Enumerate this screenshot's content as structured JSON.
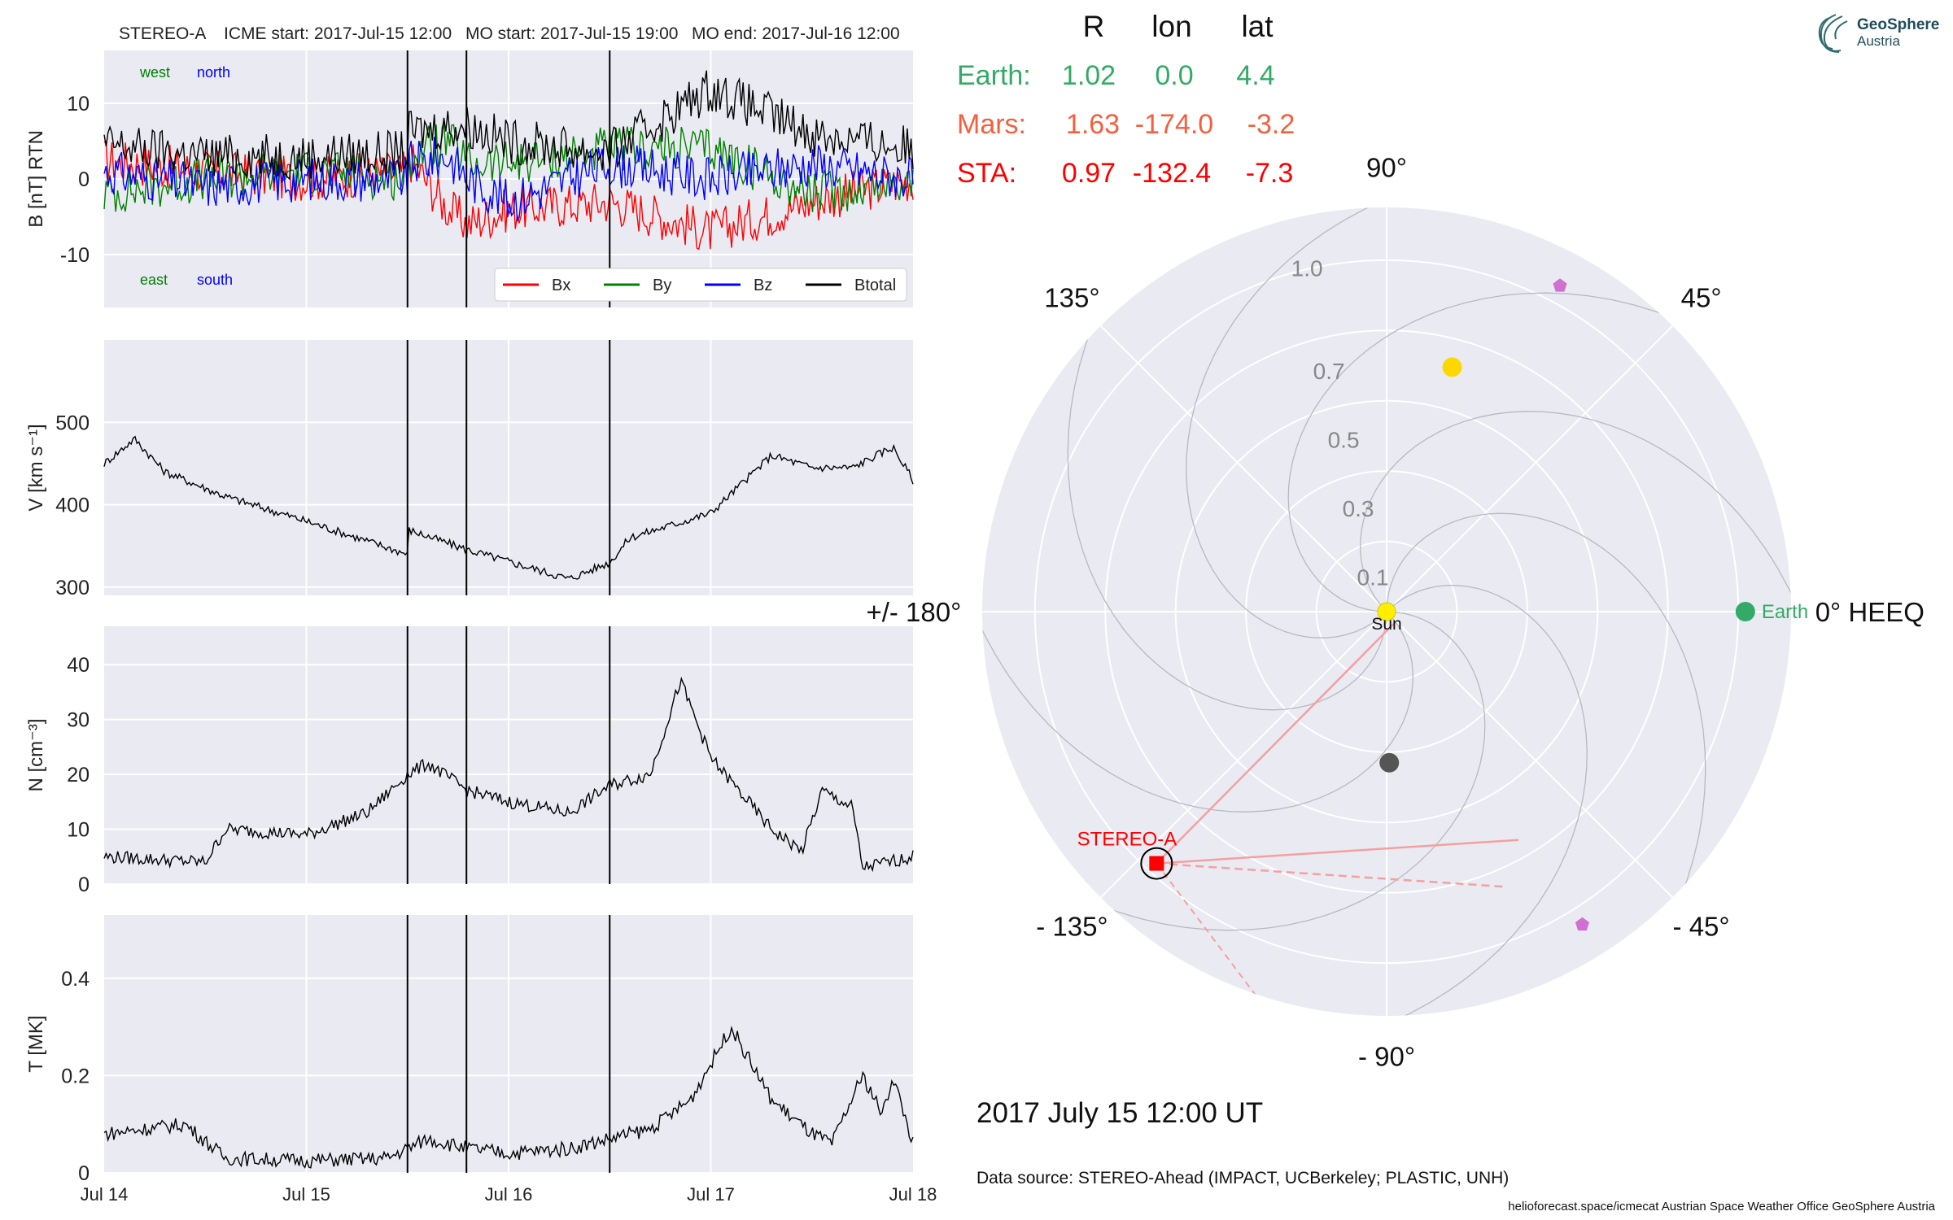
{
  "header": {
    "spacecraft": "STEREO-A",
    "icme_start": "ICME start: 2017-Jul-15 12:00",
    "mo_start": "MO start: 2017-Jul-15 19:00",
    "mo_end": "MO end: 2017-Jul-16 12:00"
  },
  "logo": {
    "line1": "GeoSphere",
    "line2": "Austria"
  },
  "position_table": {
    "headers": [
      "R",
      "lon",
      "lat"
    ],
    "rows": [
      {
        "name": "Earth:",
        "r": "1.02",
        "lon": "0.0",
        "lat": "4.4",
        "color": "#33aa66"
      },
      {
        "name": "Mars:",
        "r": "1.63",
        "lon": "-174.0",
        "lat": "-3.2",
        "color": "#f4603e"
      },
      {
        "name": "STA:",
        "r": "0.97",
        "lon": "-132.4",
        "lat": "-7.3",
        "color": "#ff0000"
      }
    ]
  },
  "polar": {
    "angle_labels": [
      "0° HEEQ",
      "45°",
      "90°",
      "135°",
      "+/- 180°",
      "- 135°",
      "- 90°",
      "- 45°"
    ],
    "radial_labels": [
      "0.1",
      "0.3",
      "0.5",
      "0.7",
      "1.0"
    ],
    "labels": {
      "sun": "Sun",
      "earth": "Earth",
      "sta": "STEREO-A"
    },
    "objects": {
      "earth": {
        "r": 1.02,
        "lon": 0.0,
        "color": "#33aa66"
      },
      "sta": {
        "r": 0.97,
        "lon": -132.4,
        "color": "#ff0000"
      },
      "venus": {
        "r": 0.72,
        "lon": 75,
        "color": "#ffd700"
      },
      "mercury": {
        "r": 0.43,
        "lon": -89,
        "color": "#555555"
      },
      "psp": {
        "r": 1.05,
        "lon": 62,
        "color": "#d070d0"
      },
      "solo": {
        "r": 1.05,
        "lon": -58,
        "color": "#d070d0"
      }
    },
    "colors": {
      "background": "#eaeaf2",
      "sun": "#ffee00",
      "cme_line": "#f4a0a0"
    }
  },
  "date_label": "2017 July 15  12:00 UT",
  "data_source": "Data source: STEREO-Ahead (IMPACT, UCBerkeley; PLASTIC, UNH)",
  "footer": "helioforecast.space/icmecat   Austrian Space Weather Office   GeoSphere Austria",
  "chart_data": [
    {
      "type": "line",
      "ylabel": "B [nT] RTN",
      "ylim": [
        -17,
        17
      ],
      "yticks": [
        10,
        0,
        -10
      ],
      "legend": [
        "Bx",
        "By",
        "Bz",
        "Btotal"
      ],
      "legend_placement": "lower-right",
      "annotations": {
        "west": "west",
        "north": "north",
        "east": "east",
        "south": "south"
      },
      "series": [
        {
          "name": "Bx",
          "color": "#ff0000",
          "x": [
            0,
            0.5,
            1,
            1.5,
            1.5,
            1.7,
            1.8,
            2,
            2.5,
            3,
            3.5,
            4
          ],
          "y": [
            2.5,
            1,
            0,
            1,
            3,
            -4,
            -6,
            -4,
            -3,
            -7,
            -3,
            0
          ]
        },
        {
          "name": "By",
          "color": "#008000",
          "x": [
            0,
            0.5,
            1,
            1.5,
            1.5,
            1.7,
            1.8,
            2,
            2.5,
            3,
            3.5,
            4
          ],
          "y": [
            -2,
            0,
            1,
            0,
            3,
            5,
            2,
            2,
            4,
            4,
            -2,
            0
          ]
        },
        {
          "name": "Bz",
          "color": "#0000ff",
          "x": [
            0,
            0.5,
            1,
            1.5,
            1.5,
            1.7,
            1.8,
            2,
            2.5,
            3,
            3.5,
            4
          ],
          "y": [
            1,
            -1,
            0,
            0,
            2,
            3,
            0,
            -3,
            2,
            0,
            2,
            0
          ]
        },
        {
          "name": "Btotal",
          "color": "#000000",
          "x": [
            0,
            0.5,
            1,
            1.5,
            1.5,
            1.7,
            1.8,
            2,
            2.5,
            3,
            3.5,
            4
          ],
          "y": [
            4.5,
            3,
            3,
            3.5,
            6,
            7,
            7,
            5,
            3.5,
            12,
            6,
            4
          ]
        }
      ]
    },
    {
      "type": "line",
      "ylabel": "V [km s⁻¹]",
      "ylim": [
        290,
        600
      ],
      "yticks": [
        500,
        400,
        300
      ],
      "series": [
        {
          "name": "V",
          "color": "#000000",
          "x": [
            0,
            0.15,
            0.3,
            0.6,
            1,
            1.5,
            1.5,
            1.8,
            2.3,
            2.5,
            2.6,
            3,
            3.3,
            3.5,
            3.7,
            3.9,
            4
          ],
          "y": [
            450,
            480,
            440,
            410,
            380,
            340,
            370,
            345,
            310,
            330,
            360,
            390,
            460,
            445,
            445,
            470,
            430
          ]
        }
      ]
    },
    {
      "type": "line",
      "ylabel": "N [cm⁻³]",
      "ylim": [
        0,
        47
      ],
      "yticks": [
        40,
        30,
        20,
        10,
        0
      ],
      "series": [
        {
          "name": "N",
          "color": "#000000",
          "x": [
            0,
            0.5,
            0.6,
            1,
            1.3,
            1.5,
            1.6,
            1.8,
            2,
            2.3,
            2.5,
            2.7,
            2.85,
            3,
            3.3,
            3.45,
            3.55,
            3.7,
            3.75,
            4
          ],
          "y": [
            5,
            4,
            10,
            9,
            13,
            20,
            22,
            17,
            15,
            13,
            18,
            20,
            37,
            23,
            10,
            6,
            17,
            14,
            3,
            5
          ]
        }
      ]
    },
    {
      "type": "line",
      "ylabel": "T [MK]",
      "ylim": [
        0,
        0.53
      ],
      "yticks": [
        0.4,
        0.2,
        0.0
      ],
      "xlim": [
        0,
        4
      ],
      "xticks": [
        "Jul 14",
        "Jul 15",
        "Jul 16",
        "Jul 17",
        "Jul 18"
      ],
      "event_lines": [
        "2017-Jul-15 12:00",
        "2017-Jul-15 19:00",
        "2017-Jul-16 12:00"
      ],
      "series": [
        {
          "name": "T",
          "color": "#000000",
          "x": [
            0,
            0.4,
            0.6,
            1.0,
            1.4,
            1.6,
            1.8,
            2.0,
            2.3,
            2.5,
            2.7,
            2.9,
            3.1,
            3.3,
            3.5,
            3.6,
            3.75,
            3.85,
            3.9,
            4
          ],
          "y": [
            0.08,
            0.1,
            0.03,
            0.025,
            0.03,
            0.07,
            0.05,
            0.04,
            0.05,
            0.07,
            0.09,
            0.15,
            0.3,
            0.15,
            0.08,
            0.06,
            0.2,
            0.12,
            0.2,
            0.06
          ]
        }
      ]
    }
  ]
}
